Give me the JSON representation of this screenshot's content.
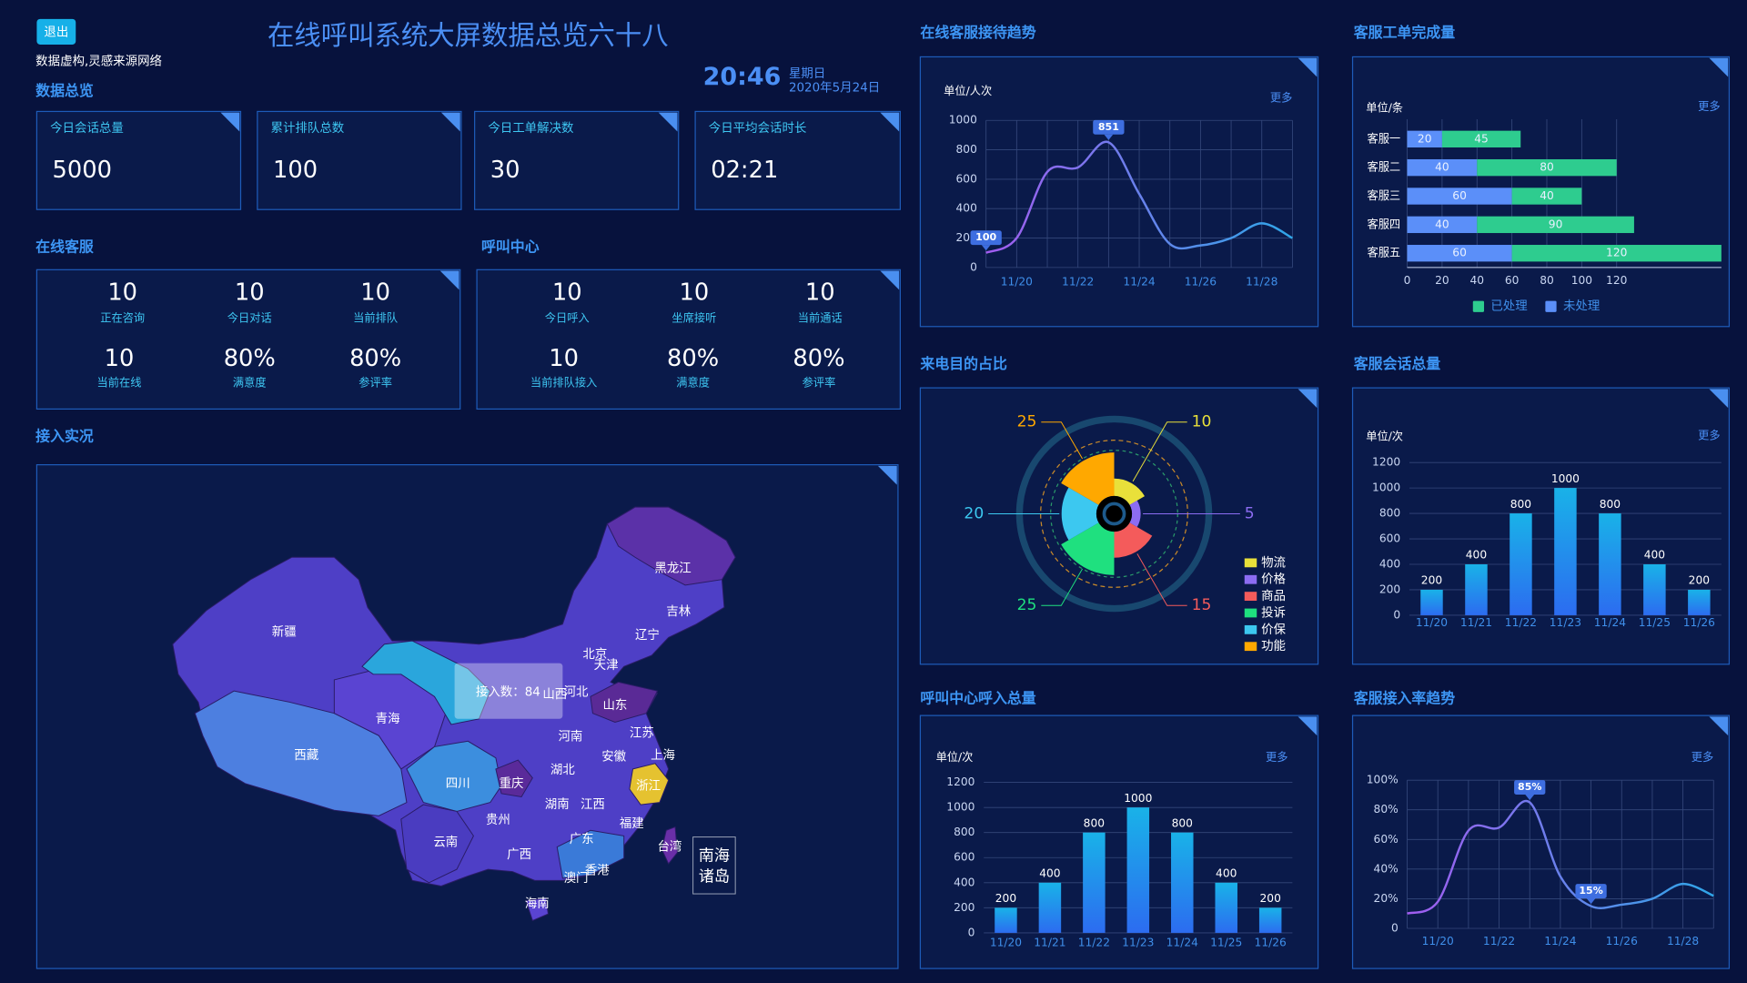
{
  "header": {
    "exit": "退出",
    "note": "数据虚构,灵感来源网络",
    "title": "在线呼叫系统大屏数据总览六十八",
    "time": "20:46",
    "weekday": "星期日",
    "date": "2020年5月24日"
  },
  "overview": {
    "title": "数据总览",
    "cards": [
      {
        "label": "今日会话总量",
        "value": 5000
      },
      {
        "label": "累计排队总数",
        "value": 100
      },
      {
        "label": "今日工单解决数",
        "value": 30
      },
      {
        "label": "今日平均会话时长",
        "value": "02:21"
      }
    ]
  },
  "online_service": {
    "title": "在线客服",
    "items": [
      {
        "value": 10,
        "label": "正在咨询"
      },
      {
        "value": 10,
        "label": "今日对话"
      },
      {
        "value": 10,
        "label": "当前排队"
      },
      {
        "value": 10,
        "label": "当前在线"
      },
      {
        "value": "80%",
        "label": "满意度"
      },
      {
        "value": "80%",
        "label": "参评率"
      }
    ]
  },
  "call_center": {
    "title": "呼叫中心",
    "items": [
      {
        "value": 10,
        "label": "今日呼入"
      },
      {
        "value": 10,
        "label": "坐席接听"
      },
      {
        "value": 10,
        "label": "当前通话"
      },
      {
        "value": 10,
        "label": "当前排队接入"
      },
      {
        "value": "80%",
        "label": "满意度"
      },
      {
        "value": "80%",
        "label": "参评率"
      }
    ]
  },
  "access": {
    "title": "接入实况",
    "provinces": [
      "新疆",
      "西藏",
      "青海",
      "四川",
      "云南",
      "贵州",
      "广西",
      "重庆",
      "湖北",
      "湖南",
      "江西",
      "福建",
      "广东",
      "香港",
      "澳门",
      "海南",
      "台湾",
      "浙江",
      "上海",
      "江苏",
      "安徽",
      "山东",
      "河南",
      "河北",
      "山西",
      "北京",
      "天津",
      "辽宁",
      "吉林",
      "黑龙江"
    ],
    "tooltip": "接入数：84",
    "islands": [
      "南海",
      "诸岛"
    ]
  },
  "chart_data": [
    {
      "type": "line",
      "title": "在线客服接待趋势",
      "unit": "单位/人次",
      "more": "更多",
      "categories": [
        null,
        "11/20",
        null,
        "11/22",
        null,
        "11/24",
        null,
        "11/26",
        null,
        "11/28",
        null
      ],
      "values": [
        100,
        200,
        650,
        680,
        851,
        500,
        160,
        150,
        200,
        300,
        200
      ],
      "gradient": [
        "#a25cf0",
        "#2fa6e8"
      ],
      "ylim": [
        0,
        1000
      ],
      "yticks": [
        0,
        200,
        400,
        600,
        800,
        1000
      ],
      "grid": true
    },
    {
      "type": "bar",
      "orientation": "horizontal",
      "stacked": true,
      "title": "客服工单完成量",
      "unit": "单位/条",
      "more": "更多",
      "categories": [
        "客服一",
        "客服二",
        "客服三",
        "客服四",
        "客服五"
      ],
      "series": [
        {
          "name": "未处理",
          "color": "#5b8ff9",
          "values": [
            20,
            40,
            60,
            40,
            60
          ]
        },
        {
          "name": "已处理",
          "color": "#2ecc8f",
          "values": [
            45,
            80,
            40,
            90,
            120
          ]
        }
      ],
      "xlim": [
        0,
        180
      ],
      "xticks": [
        0,
        20,
        40,
        60,
        80,
        100,
        120
      ],
      "grid": true
    },
    {
      "type": "pie",
      "rose": "area",
      "title": "来电目的占比",
      "categories": [
        "物流",
        "价格",
        "商品",
        "投诉",
        "价保",
        "功能"
      ],
      "values": [
        10,
        5,
        15,
        25,
        20,
        25
      ],
      "colors": [
        "#e9e03a",
        "#8c6cf2",
        "#f45b5b",
        "#1fe07f",
        "#3cc8f0",
        "#ffa800"
      ]
    },
    {
      "type": "bar",
      "title": "客服会话总量",
      "unit": "单位/次",
      "more": "更多",
      "categories": [
        "11/20",
        "11/21",
        "11/22",
        "11/23",
        "11/24",
        "11/25",
        "11/26"
      ],
      "values": [
        200,
        400,
        800,
        1000,
        800,
        400,
        200
      ],
      "gradient": [
        "#19b2e8",
        "#2c6cf0"
      ],
      "ylim": [
        0,
        1200
      ],
      "yticks": [
        0,
        200,
        400,
        600,
        800,
        1000,
        1200
      ],
      "grid": true
    },
    {
      "type": "bar",
      "title": "呼叫中心呼入总量",
      "unit": "单位/次",
      "more": "更多",
      "categories": [
        "11/20",
        "11/21",
        "11/22",
        "11/23",
        "11/24",
        "11/25",
        "11/26"
      ],
      "values": [
        200,
        400,
        800,
        1000,
        800,
        400,
        200
      ],
      "gradient": [
        "#19b2e8",
        "#2c6cf0"
      ],
      "ylim": [
        0,
        1200
      ],
      "yticks": [
        0,
        200,
        400,
        600,
        800,
        1000,
        1200
      ],
      "grid": true
    },
    {
      "type": "line",
      "title": "客服接入率趋势",
      "more": "更多",
      "categories": [
        null,
        "11/20",
        null,
        "11/22",
        null,
        "11/24",
        null,
        "11/26",
        null,
        "11/28",
        null
      ],
      "values": [
        10,
        18,
        66,
        68,
        85,
        35,
        15,
        16,
        20,
        30,
        22
      ],
      "value_labels": [
        null,
        null,
        null,
        null,
        "85%",
        null,
        "15%",
        null,
        null,
        null,
        null
      ],
      "gradient": [
        "#a25cf0",
        "#2fa6e8"
      ],
      "ylim": [
        0,
        100
      ],
      "yticks": [
        0,
        {
          "value": 20,
          "label": "20%"
        },
        {
          "value": 40,
          "label": "40%"
        },
        {
          "value": 60,
          "label": "60%"
        },
        {
          "value": 80,
          "label": "80%"
        },
        {
          "value": 100,
          "label": "100%"
        }
      ],
      "grid": true
    }
  ]
}
